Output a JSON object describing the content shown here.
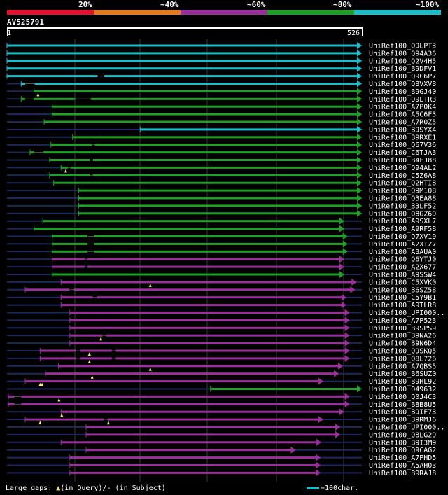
{
  "colors": {
    "bands": [
      "#e8102c",
      "#e97a1c",
      "#9b2f9b",
      "#1f9f25",
      "#18bfc9"
    ],
    "line_bg": "#1c2a5a",
    "gap": "#000000",
    "marker": "#ffe96b"
  },
  "legend": {
    "labels": [
      "20%",
      "~40%",
      "~60%",
      "~80%",
      "~100%"
    ]
  },
  "query": {
    "id": "AV525791",
    "start": "1",
    "end": "526",
    "length": 526
  },
  "hits": [
    {
      "label": "UniRef100_Q9LPT3",
      "band": 4,
      "start": 1,
      "end": 526,
      "kind": "arrow"
    },
    {
      "label": "UniRef100_Q94A36",
      "band": 4,
      "start": 1,
      "end": 526,
      "kind": "arrow"
    },
    {
      "label": "UniRef100_Q2V4H5",
      "band": 4,
      "start": 1,
      "end": 526,
      "kind": "arrow"
    },
    {
      "label": "UniRef100_B9DFV1",
      "band": 4,
      "start": 1,
      "end": 526,
      "kind": "arrow"
    },
    {
      "label": "UniRef100_Q9C6P7",
      "band": 4,
      "start": 1,
      "end": 526,
      "kind": "arrow",
      "gaps": [
        [
          135,
          145
        ]
      ]
    },
    {
      "label": "UniRef100_Q8VXV8",
      "band": 4,
      "start": 22,
      "end": 526,
      "kind": "arrow",
      "gaps": [
        [
          28,
          42
        ]
      ]
    },
    {
      "label": "UniRef100_B9GJ40",
      "band": 3,
      "start": 41,
      "end": 526,
      "kind": "arrow",
      "markers": [
        47
      ]
    },
    {
      "label": "UniRef100_Q9LTR3",
      "band": 3,
      "start": 22,
      "end": 526,
      "kind": "arrow",
      "gaps": [
        [
          28,
          40
        ],
        [
          102,
          125
        ]
      ]
    },
    {
      "label": "UniRef100_A7P0K4",
      "band": 3,
      "start": 68,
      "end": 526,
      "kind": "arrow"
    },
    {
      "label": "UniRef100_A5C6F3",
      "band": 3,
      "start": 68,
      "end": 526,
      "kind": "arrow"
    },
    {
      "label": "UniRef100_A7R0Z5",
      "band": 3,
      "start": 56,
      "end": 526,
      "kind": "arrow"
    },
    {
      "label": "UniRef100_B9SYX4",
      "band": 4,
      "start": 198,
      "end": 526,
      "kind": "arrow"
    },
    {
      "label": "UniRef100_B9RXE1",
      "band": 3,
      "start": 98,
      "end": 526,
      "kind": "arrow"
    },
    {
      "label": "UniRef100_Q67V36",
      "band": 3,
      "start": 66,
      "end": 526,
      "kind": "arrow",
      "gaps": [
        [
          127,
          131
        ]
      ]
    },
    {
      "label": "UniRef100_C6TJA3",
      "band": 3,
      "start": 35,
      "end": 526,
      "kind": "arrow",
      "gaps": [
        [
          41,
          55
        ]
      ]
    },
    {
      "label": "UniRef100_B4FJ88",
      "band": 3,
      "start": 64,
      "end": 526,
      "kind": "arrow",
      "gaps": [
        [
          124,
          128
        ]
      ]
    },
    {
      "label": "UniRef100_Q94AL2",
      "band": 3,
      "start": 81,
      "end": 526,
      "kind": "arrow",
      "gaps": [
        [
          91,
          95
        ]
      ],
      "markers": [
        88
      ]
    },
    {
      "label": "UniRef100_C5Z6A8",
      "band": 3,
      "start": 64,
      "end": 526,
      "kind": "arrow",
      "gaps": [
        [
          124,
          128
        ]
      ]
    },
    {
      "label": "UniRef100_Q2HTI8",
      "band": 3,
      "start": 70,
      "end": 526,
      "kind": "arrow"
    },
    {
      "label": "UniRef100_Q9M108",
      "band": 3,
      "start": 107,
      "end": 526,
      "kind": "arrow"
    },
    {
      "label": "UniRef100_Q3EA88",
      "band": 3,
      "start": 107,
      "end": 526,
      "kind": "arrow"
    },
    {
      "label": "UniRef100_B3LF52",
      "band": 3,
      "start": 107,
      "end": 526,
      "kind": "arrow"
    },
    {
      "label": "UniRef100_Q8GZ69",
      "band": 3,
      "start": 107,
      "end": 526,
      "kind": "arrow"
    },
    {
      "label": "UniRef100_A9SXL7",
      "band": 3,
      "start": 54,
      "end": 500,
      "kind": "arrow"
    },
    {
      "label": "UniRef100_A9RF58",
      "band": 3,
      "start": 41,
      "end": 500,
      "kind": "arrow"
    },
    {
      "label": "UniRef100_Q7XV19",
      "band": 3,
      "start": 68,
      "end": 505,
      "kind": "arrow",
      "gaps": [
        [
          120,
          130
        ]
      ]
    },
    {
      "label": "UniRef100_A2XTZ7",
      "band": 3,
      "start": 68,
      "end": 505,
      "kind": "arrow",
      "gaps": [
        [
          120,
          130
        ]
      ]
    },
    {
      "label": "UniRef100_A3AUA0",
      "band": 3,
      "start": 68,
      "end": 505,
      "kind": "arrow",
      "gaps": [
        [
          120,
          130
        ]
      ]
    },
    {
      "label": "UniRef100_Q6YTJ0",
      "band": 2,
      "start": 68,
      "end": 500,
      "kind": "arrow",
      "gaps": [
        [
          116,
          120
        ]
      ]
    },
    {
      "label": "UniRef100_A2X677",
      "band": 2,
      "start": 68,
      "end": 500,
      "kind": "arrow",
      "gaps": [
        [
          116,
          120
        ]
      ]
    },
    {
      "label": "UniRef100_A9SSW4",
      "band": 3,
      "start": 68,
      "end": 500,
      "kind": "arrow"
    },
    {
      "label": "UniRef100_C5XVK0",
      "band": 2,
      "start": 81,
      "end": 518,
      "kind": "arrow",
      "markers": [
        213
      ]
    },
    {
      "label": "UniRef100_B6SZ58",
      "band": 2,
      "start": 28,
      "end": 516,
      "kind": "arrow",
      "gaps": [
        [
          93,
          100
        ]
      ]
    },
    {
      "label": "UniRef100_C5Y9B1",
      "band": 2,
      "start": 81,
      "end": 503,
      "kind": "arrow",
      "gaps": [
        [
          128,
          134
        ]
      ]
    },
    {
      "label": "UniRef100_A9TLR8",
      "band": 2,
      "start": 81,
      "end": 503,
      "kind": "arrow"
    },
    {
      "label": "UniRef100_UPI000..",
      "band": 2,
      "start": 94,
      "end": 508,
      "kind": "arrow"
    },
    {
      "label": "UniRef100_A7P523",
      "band": 2,
      "start": 94,
      "end": 508,
      "kind": "arrow"
    },
    {
      "label": "UniRef100_B9SPS9",
      "band": 2,
      "start": 94,
      "end": 508,
      "kind": "arrow"
    },
    {
      "label": "UniRef100_B9NA26",
      "band": 2,
      "start": 94,
      "end": 508,
      "kind": "arrow",
      "gaps": [
        [
          142,
          148
        ]
      ],
      "markers": [
        140
      ]
    },
    {
      "label": "UniRef100_B9N6D4",
      "band": 2,
      "start": 94,
      "end": 508,
      "kind": "arrow"
    },
    {
      "label": "UniRef100_Q9SKQ5",
      "band": 2,
      "start": 50,
      "end": 508,
      "kind": "arrow",
      "gaps": [
        [
          103,
          109
        ],
        [
          156,
          162
        ]
      ],
      "markers": [
        123
      ]
    },
    {
      "label": "UniRef100_Q8L726",
      "band": 2,
      "start": 50,
      "end": 508,
      "kind": "arrow",
      "gaps": [
        [
          103,
          109
        ],
        [
          156,
          162
        ]
      ],
      "markers": [
        123
      ]
    },
    {
      "label": "UniRef100_A7QBS5",
      "band": 2,
      "start": 77,
      "end": 498,
      "kind": "arrow",
      "markers": [
        213
      ]
    },
    {
      "label": "UniRef100_B6SUZ0",
      "band": 2,
      "start": 58,
      "end": 492,
      "kind": "arrow",
      "markers": [
        127
      ]
    },
    {
      "label": "UniRef100_B9HL92",
      "band": 2,
      "start": 28,
      "end": 469,
      "kind": "arrow",
      "markers": [
        50,
        53
      ]
    },
    {
      "label": "UniRef100_O49632",
      "band": 3,
      "start": 302,
      "end": 526,
      "kind": "arrow"
    },
    {
      "label": "UniRef100_Q0J4C3",
      "band": 2,
      "start": 3,
      "end": 508,
      "kind": "arrow",
      "gaps": [
        [
          12,
          22
        ]
      ],
      "markers": [
        78
      ]
    },
    {
      "label": "UniRef100_B8B8U5",
      "band": 2,
      "start": 3,
      "end": 508,
      "kind": "arrow",
      "gaps": [
        [
          12,
          22
        ]
      ]
    },
    {
      "label": "UniRef100_B9IF73",
      "band": 2,
      "start": 81,
      "end": 500,
      "kind": "arrow",
      "markers": [
        82
      ]
    },
    {
      "label": "UniRef100_B9RMJ6",
      "band": 2,
      "start": 28,
      "end": 469,
      "kind": "arrow",
      "gaps": [
        [
          144,
          150
        ]
      ],
      "markers": [
        50,
        151
      ]
    },
    {
      "label": "UniRef100_UPI000..",
      "band": 2,
      "start": 118,
      "end": 494,
      "kind": "arrow"
    },
    {
      "label": "UniRef100_Q8LG29",
      "band": 2,
      "start": 118,
      "end": 494,
      "kind": "arrow"
    },
    {
      "label": "UniRef100_B9I3M9",
      "band": 2,
      "start": 81,
      "end": 466,
      "kind": "arrow"
    },
    {
      "label": "UniRef100_Q9CAG2",
      "band": 2,
      "start": 118,
      "end": 428,
      "kind": "arrow"
    },
    {
      "label": "UniRef100_A7PHD5",
      "band": 2,
      "start": 94,
      "end": 465,
      "kind": "arrow"
    },
    {
      "label": "UniRef100_A5AH03",
      "band": 2,
      "start": 94,
      "end": 465,
      "kind": "arrow"
    },
    {
      "label": "UniRef100_B9RAJ8",
      "band": 2,
      "start": 94,
      "end": 465,
      "kind": "arrow"
    }
  ],
  "footer": {
    "gaps_text_1": "Large gaps: ",
    "gaps_text_2": "(in Query)/- (in Subject)",
    "scale_text": "=100char."
  }
}
